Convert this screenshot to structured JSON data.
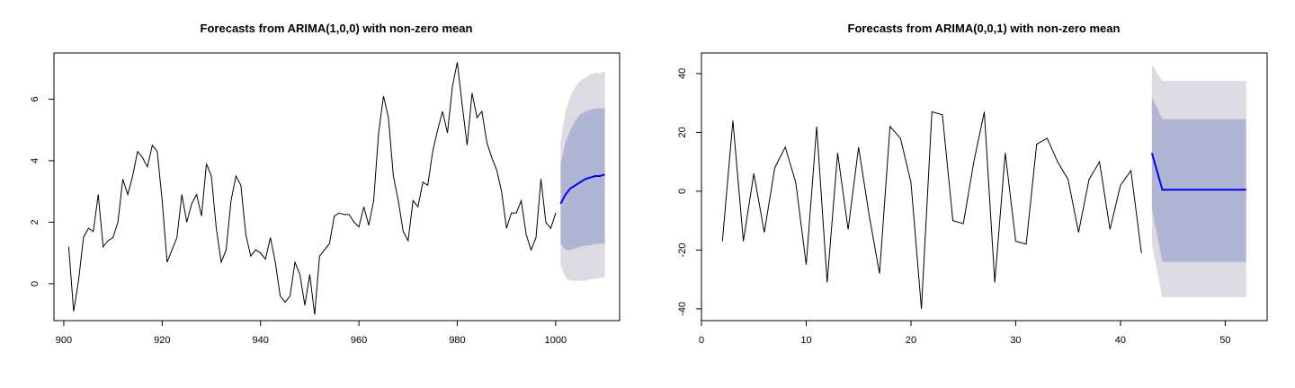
{
  "chart_data": [
    {
      "type": "line",
      "title": "Forecasts from ARIMA(1,0,0) with non-zero mean",
      "xlabel": "",
      "ylabel": "",
      "xlim": [
        898,
        1013
      ],
      "ylim": [
        -1.2,
        7.5
      ],
      "xticks": [
        900,
        920,
        940,
        960,
        980,
        1000
      ],
      "yticks": [
        0,
        2,
        4,
        6
      ],
      "grid": false,
      "colors": {
        "series": "#000000",
        "forecast": "#0000ff",
        "band80": "#b1b5d4",
        "band95": "#dbdbe1"
      },
      "series": [
        {
          "x": [
            901,
            902,
            903,
            904,
            905,
            906,
            907,
            908,
            909,
            910,
            911,
            912,
            913,
            914,
            915,
            916,
            917,
            918,
            919,
            920,
            921,
            922,
            923,
            924,
            925,
            926,
            927,
            928,
            929,
            930,
            931,
            932,
            933,
            934,
            935,
            936,
            937,
            938,
            939,
            940,
            941,
            942,
            943,
            944,
            945,
            946,
            947,
            948,
            949,
            950,
            951,
            952,
            953,
            954,
            955,
            956,
            957,
            958,
            959,
            960,
            961,
            962,
            963,
            964,
            965,
            966,
            967,
            968,
            969,
            970,
            971,
            972,
            973,
            974,
            975,
            976,
            977,
            978,
            979,
            980,
            981,
            982,
            983,
            984,
            985,
            986,
            987,
            988,
            989,
            990,
            991,
            992,
            993,
            994,
            995,
            996,
            997,
            998,
            999,
            1000
          ],
          "values": [
            1.2,
            -0.9,
            0.1,
            1.5,
            1.8,
            1.7,
            2.9,
            1.2,
            1.4,
            1.5,
            2.0,
            3.4,
            2.9,
            3.5,
            4.3,
            4.1,
            3.8,
            4.5,
            4.3,
            2.7,
            0.7,
            1.1,
            1.5,
            2.9,
            2.0,
            2.6,
            2.9,
            2.2,
            3.9,
            3.5,
            1.8,
            0.7,
            1.1,
            2.7,
            3.5,
            3.2,
            1.6,
            0.9,
            1.1,
            1.0,
            0.8,
            1.5,
            0.7,
            -0.4,
            -0.6,
            -0.4,
            0.7,
            0.3,
            -0.7,
            0.3,
            -1.0,
            0.9,
            1.1,
            1.3,
            2.2,
            2.3,
            2.25,
            2.25,
            2.0,
            1.85,
            2.5,
            1.9,
            2.7,
            4.9,
            6.1,
            5.4,
            3.5,
            2.7,
            1.7,
            1.4,
            2.7,
            2.5,
            3.3,
            3.2,
            4.3,
            5.0,
            5.6,
            4.9,
            6.4,
            7.2,
            5.8,
            4.5,
            6.2,
            5.4,
            5.6,
            4.6,
            4.1,
            3.7,
            3.0,
            1.8,
            2.3,
            2.3,
            2.7,
            1.6,
            1.1,
            1.5,
            3.4,
            2.0,
            1.8,
            2.3
          ]
        }
      ],
      "forecast": {
        "x": [
          1001,
          1002,
          1003,
          1004,
          1005,
          1006,
          1007,
          1008,
          1009,
          1010
        ],
        "mean": [
          2.6,
          2.9,
          3.1,
          3.2,
          3.3,
          3.4,
          3.45,
          3.5,
          3.5,
          3.55
        ],
        "lo80": [
          1.3,
          1.1,
          1.1,
          1.15,
          1.2,
          1.25,
          1.25,
          1.3,
          1.3,
          1.3
        ],
        "hi80": [
          3.9,
          4.6,
          5.0,
          5.3,
          5.5,
          5.6,
          5.65,
          5.7,
          5.7,
          5.7
        ],
        "lo95": [
          0.6,
          0.2,
          0.1,
          0.1,
          0.1,
          0.1,
          0.15,
          0.15,
          0.2,
          0.2
        ],
        "hi95": [
          4.6,
          5.6,
          6.1,
          6.4,
          6.6,
          6.7,
          6.8,
          6.85,
          6.85,
          6.9
        ]
      }
    },
    {
      "type": "line",
      "title": "Forecasts from ARIMA(0,0,1) with non-zero mean",
      "xlabel": "",
      "ylabel": "",
      "xlim": [
        0,
        54
      ],
      "ylim": [
        -44,
        47
      ],
      "xticks": [
        0,
        10,
        20,
        30,
        40,
        50
      ],
      "yticks": [
        -40,
        -20,
        0,
        20,
        40
      ],
      "grid": false,
      "colors": {
        "series": "#000000",
        "forecast": "#0000ff",
        "band80": "#b1b5d4",
        "band95": "#dbdbe1"
      },
      "series": [
        {
          "x": [
            2,
            3,
            4,
            5,
            6,
            7,
            8,
            9,
            10,
            11,
            12,
            13,
            14,
            15,
            16,
            17,
            18,
            19,
            20,
            21,
            22,
            23,
            24,
            25,
            26,
            27,
            28,
            29,
            30,
            31,
            32,
            33,
            34,
            35,
            36,
            37,
            38,
            39,
            40,
            41,
            42
          ],
          "values": [
            -17,
            24,
            -17,
            6,
            -14,
            8,
            15,
            3,
            -25,
            22,
            -31,
            13,
            -13,
            15,
            -8,
            -28,
            22,
            18,
            3,
            -40,
            27,
            26,
            -10,
            -11,
            10,
            27,
            -31,
            13,
            -17,
            -18,
            16,
            18,
            10,
            4,
            -14,
            4,
            10,
            -13,
            2,
            7,
            -21
          ]
        }
      ],
      "forecast": {
        "x": [
          43,
          44,
          45,
          46,
          47,
          48,
          49,
          50,
          51,
          52
        ],
        "mean": [
          13,
          0.5,
          0.5,
          0.5,
          0.5,
          0.5,
          0.5,
          0.5,
          0.5,
          0.5
        ],
        "lo80": [
          -6,
          -24,
          -24,
          -24,
          -24,
          -24,
          -24,
          -24,
          -24,
          -24
        ],
        "hi80": [
          32,
          24.5,
          24.5,
          24.5,
          24.5,
          24.5,
          24.5,
          24.5,
          24.5,
          24.5
        ],
        "lo95": [
          -18,
          -36,
          -36,
          -36,
          -36,
          -36,
          -36,
          -36,
          -36,
          -36
        ],
        "hi95": [
          43,
          37.5,
          37.5,
          37.5,
          37.5,
          37.5,
          37.5,
          37.5,
          37.5,
          37.5
        ]
      }
    }
  ]
}
